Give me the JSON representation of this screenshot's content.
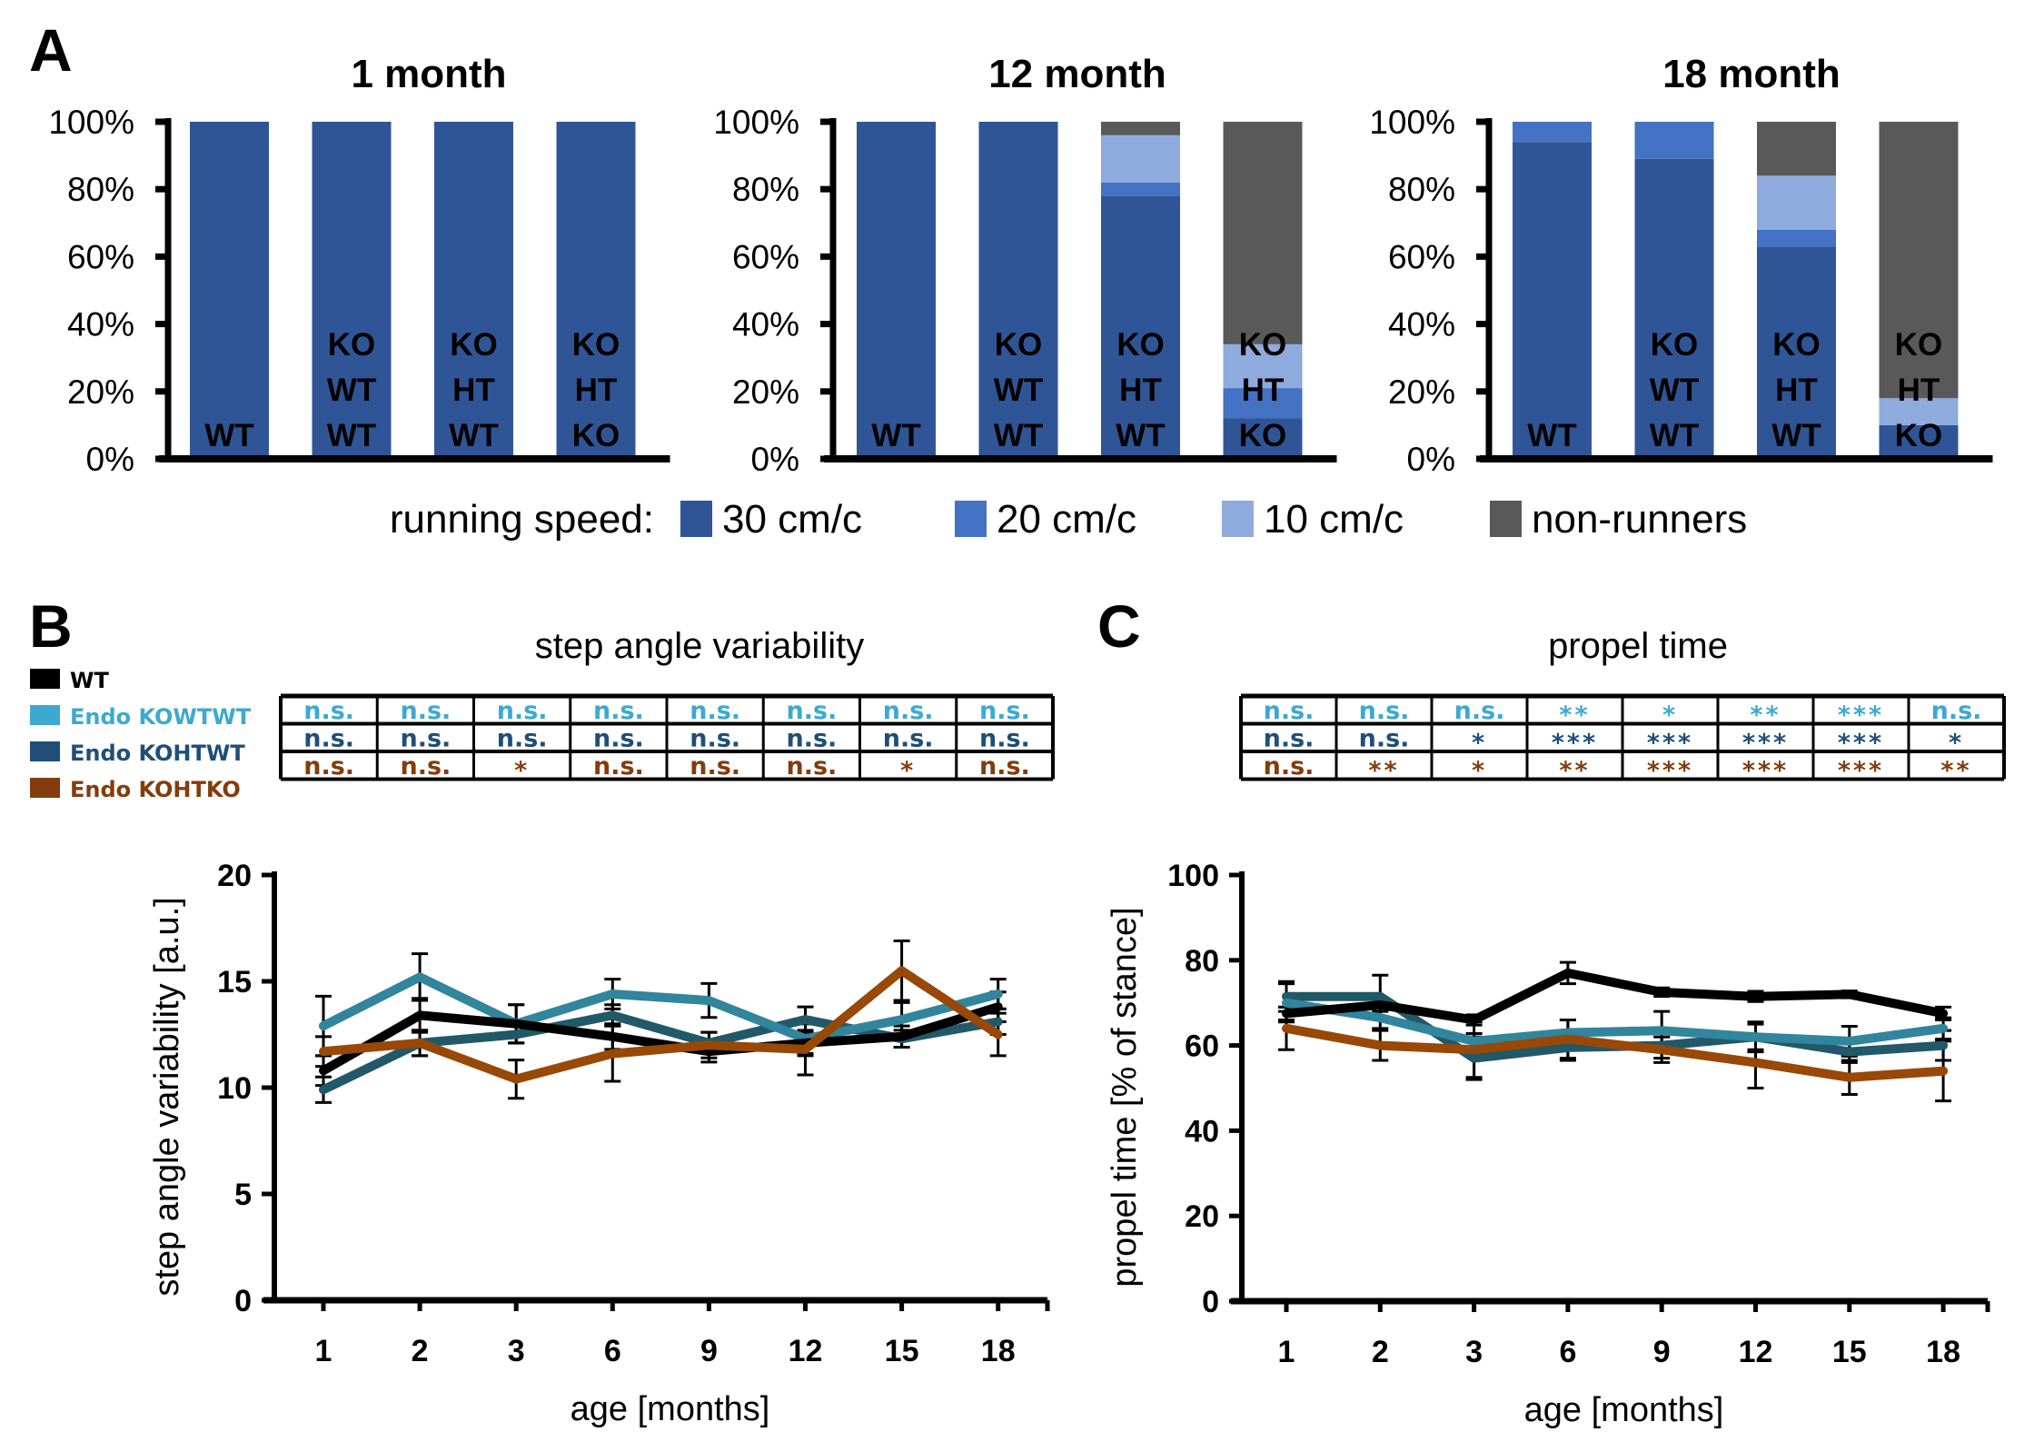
{
  "panel_letters": {
    "a": "A",
    "b": "B",
    "c": "C"
  },
  "colors": {
    "speed_30": "#2F5597",
    "speed_20": "#4472C4",
    "speed_10": "#8FAADC",
    "non_runners": "#595959",
    "WT": "#000000",
    "KOWTWT_line": "#31859C",
    "KOHTWT_line": "#215968",
    "KOHTKO_line": "#984807",
    "KOWTWT_text": "#3DA9D1",
    "KOHTWT_text": "#1F4E79",
    "KOHTKO_text": "#843C0C"
  },
  "chart_data": [
    {
      "type": "bar",
      "stacked": true,
      "title": "1 month",
      "categories": [
        "WT",
        "KO WT WT",
        "KO HT WT",
        "KO HT KO"
      ],
      "category_labels": [
        [
          "WT"
        ],
        [
          "KO",
          "WT",
          "WT"
        ],
        [
          "KO",
          "HT",
          "WT"
        ],
        [
          "KO",
          "HT",
          "KO"
        ]
      ],
      "yticks": [
        "0%",
        "20%",
        "40%",
        "60%",
        "80%",
        "100%"
      ],
      "ylim": [
        0,
        100
      ],
      "series": [
        {
          "name": "30 cm/c",
          "color_key": "speed_30",
          "values": [
            100,
            100,
            100,
            100
          ]
        },
        {
          "name": "20 cm/c",
          "color_key": "speed_20",
          "values": [
            0,
            0,
            0,
            0
          ]
        },
        {
          "name": "10 cm/c",
          "color_key": "speed_10",
          "values": [
            0,
            0,
            0,
            0
          ]
        },
        {
          "name": "non-runners",
          "color_key": "non_runners",
          "values": [
            0,
            0,
            0,
            0
          ]
        }
      ]
    },
    {
      "type": "bar",
      "stacked": true,
      "title": "12 month",
      "categories": [
        "WT",
        "KO WT WT",
        "KO HT WT",
        "KO HT KO"
      ],
      "category_labels": [
        [
          "WT"
        ],
        [
          "KO",
          "WT",
          "WT"
        ],
        [
          "KO",
          "HT",
          "WT"
        ],
        [
          "KO",
          "HT",
          "KO"
        ]
      ],
      "yticks": [
        "0%",
        "20%",
        "40%",
        "60%",
        "80%",
        "100%"
      ],
      "ylim": [
        0,
        100
      ],
      "series": [
        {
          "name": "30 cm/c",
          "color_key": "speed_30",
          "values": [
            100,
            100,
            78,
            12
          ]
        },
        {
          "name": "20 cm/c",
          "color_key": "speed_20",
          "values": [
            0,
            0,
            4,
            9
          ]
        },
        {
          "name": "10 cm/c",
          "color_key": "speed_10",
          "values": [
            0,
            0,
            14,
            13
          ]
        },
        {
          "name": "non-runners",
          "color_key": "non_runners",
          "values": [
            0,
            0,
            4,
            66
          ]
        }
      ]
    },
    {
      "type": "bar",
      "stacked": true,
      "title": "18 month",
      "categories": [
        "WT",
        "KO WT WT",
        "KO HT WT",
        "KO HT KO"
      ],
      "category_labels": [
        [
          "WT"
        ],
        [
          "KO",
          "WT",
          "WT"
        ],
        [
          "KO",
          "HT",
          "WT"
        ],
        [
          "KO",
          "HT",
          "KO"
        ]
      ],
      "yticks": [
        "0%",
        "20%",
        "40%",
        "60%",
        "80%",
        "100%"
      ],
      "ylim": [
        0,
        100
      ],
      "series": [
        {
          "name": "30 cm/c",
          "color_key": "speed_30",
          "values": [
            94,
            89,
            63,
            10
          ]
        },
        {
          "name": "20 cm/c",
          "color_key": "speed_20",
          "values": [
            6,
            11,
            5,
            0
          ]
        },
        {
          "name": "10 cm/c",
          "color_key": "speed_10",
          "values": [
            0,
            0,
            16,
            8
          ]
        },
        {
          "name": "non-runners",
          "color_key": "non_runners",
          "values": [
            0,
            0,
            16,
            82
          ]
        }
      ]
    },
    {
      "type": "line",
      "title": "step angle variability",
      "xlabel": "age [months]",
      "ylabel": "step angle variability [a.u.]",
      "x": [
        "1",
        "2",
        "3",
        "6",
        "9",
        "12",
        "15",
        "18"
      ],
      "ylim": [
        0,
        20
      ],
      "yticks": [
        0,
        5,
        10,
        15,
        20
      ],
      "error_bars": true,
      "series": [
        {
          "name": "WT",
          "color_key": "WT",
          "values": [
            10.8,
            13.4,
            13.0,
            12.4,
            11.7,
            12.1,
            12.4,
            13.8
          ],
          "err": [
            0.7,
            0.8,
            0.9,
            0.6,
            0.5,
            0.6,
            0.5,
            0.7
          ]
        },
        {
          "name": "Endo KOWTWT",
          "color_key": "KOWTWT_line",
          "values": [
            12.9,
            15.2,
            13.0,
            14.4,
            14.1,
            12.3,
            13.2,
            14.4
          ],
          "err": [
            1.4,
            1.1,
            0.9,
            0.7,
            0.8,
            0.7,
            0.8,
            0.7
          ]
        },
        {
          "name": "Endo KOHTWT",
          "color_key": "KOHTWT_line",
          "values": [
            9.9,
            12.1,
            12.5,
            13.4,
            12.1,
            13.2,
            12.3,
            13.1
          ],
          "err": [
            0.6,
            0.6,
            0.4,
            0.5,
            0.5,
            0.6,
            0.4,
            0.6
          ]
        },
        {
          "name": "Endo KOHTKO",
          "color_key": "KOHTKO_line",
          "values": [
            11.7,
            12.1,
            10.4,
            11.6,
            12.0,
            11.8,
            15.5,
            12.5
          ],
          "err": [
            0.7,
            0.6,
            0.9,
            1.3,
            0.6,
            1.2,
            1.4,
            1.0
          ]
        }
      ]
    },
    {
      "type": "line",
      "title": "propel time",
      "xlabel": "age [months]",
      "ylabel": "propel time [% of stance]",
      "x": [
        "1",
        "2",
        "3",
        "6",
        "9",
        "12",
        "15",
        "18"
      ],
      "ylim": [
        0,
        100
      ],
      "yticks": [
        0,
        20,
        40,
        60,
        80,
        100
      ],
      "error_bars": true,
      "series": [
        {
          "name": "WT",
          "color_key": "WT",
          "values": [
            67.5,
            69.5,
            66,
            77,
            72.5,
            71.5,
            72,
            67.5
          ],
          "err": [
            1.5,
            1.5,
            1.2,
            2.5,
            1.0,
            1.2,
            0.8,
            1.5
          ]
        },
        {
          "name": "Endo KOWTWT",
          "color_key": "KOWTWT_line",
          "values": [
            70,
            66.5,
            61,
            63,
            63.5,
            62,
            61,
            64
          ],
          "err": [
            4.5,
            2.5,
            1.8,
            3.0,
            4.5,
            3.5,
            3.5,
            2.5
          ]
        },
        {
          "name": "Endo KOHTWT",
          "color_key": "KOHTWT_line",
          "values": [
            71.5,
            71.5,
            57,
            59.5,
            60,
            62,
            58.5,
            60
          ],
          "err": [
            3.5,
            5.0,
            5.0,
            3.0,
            3.0,
            3.0,
            2.5,
            3.5
          ]
        },
        {
          "name": "Endo KOHTKO",
          "color_key": "KOHTKO_line",
          "values": [
            64,
            60,
            59,
            61.5,
            59,
            56,
            52.5,
            54
          ],
          "err": [
            5.0,
            3.5,
            6.5,
            4.5,
            3.0,
            6.0,
            4.0,
            7.0
          ]
        }
      ]
    }
  ],
  "bar_legend": {
    "prefix": "running speed:",
    "items": [
      {
        "label": "30 cm/c",
        "color_key": "speed_30"
      },
      {
        "label": "20 cm/c",
        "color_key": "speed_20"
      },
      {
        "label": "10 cm/c",
        "color_key": "speed_10"
      },
      {
        "label": "non-runners",
        "color_key": "non_runners"
      }
    ]
  },
  "group_legend": [
    {
      "label": "WT",
      "color_key": "WT"
    },
    {
      "label": "Endo KOWTWT",
      "color_key": "KOWTWT_text"
    },
    {
      "label": "Endo KOHTWT",
      "color_key": "KOHTWT_text"
    },
    {
      "label": "Endo KOHTKO",
      "color_key": "KOHTKO_text"
    }
  ],
  "significance": {
    "step_angle_variability": [
      {
        "group": "Endo KOWTWT",
        "color_key": "KOWTWT_text",
        "cells": [
          "n.s.",
          "n.s.",
          "n.s.",
          "n.s.",
          "n.s.",
          "n.s.",
          "n.s.",
          "n.s."
        ]
      },
      {
        "group": "Endo KOHTWT",
        "color_key": "KOHTWT_text",
        "cells": [
          "n.s.",
          "n.s.",
          "n.s.",
          "n.s.",
          "n.s.",
          "n.s.",
          "n.s.",
          "n.s."
        ]
      },
      {
        "group": "Endo KOHTKO",
        "color_key": "KOHTKO_text",
        "cells": [
          "n.s.",
          "n.s.",
          "*",
          "n.s.",
          "n.s.",
          "n.s.",
          "*",
          "n.s."
        ]
      }
    ],
    "propel_time": [
      {
        "group": "Endo KOWTWT",
        "color_key": "KOWTWT_text",
        "cells": [
          "n.s.",
          "n.s.",
          "n.s.",
          "**",
          "*",
          "**",
          "***",
          "n.s."
        ]
      },
      {
        "group": "Endo KOHTWT",
        "color_key": "KOHTWT_text",
        "cells": [
          "n.s.",
          "n.s.",
          "*",
          "***",
          "***",
          "***",
          "***",
          "*"
        ]
      },
      {
        "group": "Endo KOHTKO",
        "color_key": "KOHTKO_text",
        "cells": [
          "n.s.",
          "**",
          "*",
          "**",
          "***",
          "***",
          "***",
          "**"
        ]
      }
    ]
  }
}
